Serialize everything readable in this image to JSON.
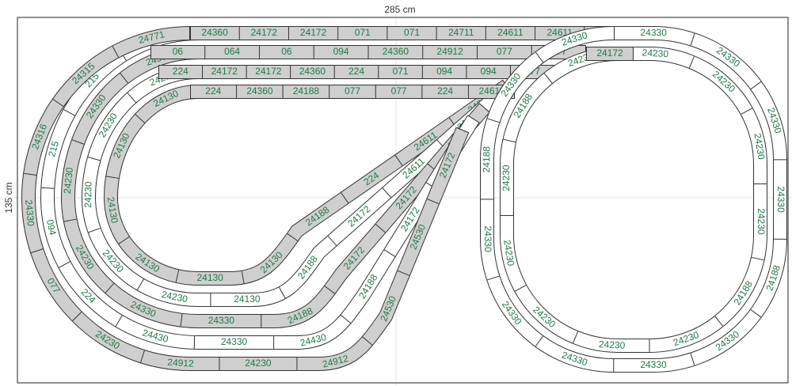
{
  "dimensions": {
    "width": "285 cm",
    "height": "135 cm"
  },
  "tracks": [
    {
      "labels": [
        "24130",
        "24130",
        "24130",
        "24130",
        "24130",
        "24130",
        "24188",
        "224",
        "24611",
        "24611"
      ]
    },
    {
      "labels": [
        "24230",
        "24230",
        "24230",
        "24230",
        "24230",
        "24130",
        "24188",
        "24172",
        "24611",
        "24611"
      ]
    },
    {
      "labels": [
        "24330",
        "24330",
        "24230",
        "24230",
        "24330",
        "24330",
        "24188",
        "24172",
        "24172",
        "24172"
      ]
    },
    {
      "labels": [
        "24315",
        "215",
        "215",
        "094",
        "224",
        "24430",
        "24330",
        "24430",
        "24188",
        "24172",
        "24172"
      ]
    },
    {
      "labels": [
        "24771",
        "24315",
        "24316",
        "24330",
        "077",
        "24230",
        "24912",
        "24230",
        "24912",
        "24530",
        "24530",
        "24172"
      ]
    },
    {
      "labels": [
        "24360",
        "24172",
        "24172",
        "071",
        "071",
        "24711",
        "24611",
        "24611",
        "24611"
      ]
    },
    {
      "labels": [
        "06",
        "064",
        "06",
        "094",
        "24360",
        "24912",
        "077",
        "077"
      ]
    },
    {
      "labels": [
        "224",
        "24172",
        "24172",
        "24360",
        "224",
        "071",
        "094",
        "094",
        "077"
      ]
    },
    {
      "labels": [
        "224",
        "24360",
        "24188",
        "077",
        "077",
        "224",
        "24611"
      ]
    },
    {
      "labels": [
        "24330",
        "24330",
        "24330",
        "24330",
        "24188",
        "24330",
        "24330",
        "24330",
        "24330",
        "24330",
        "24188",
        "24330",
        "24330"
      ]
    },
    {
      "labels": [
        "24230",
        "24230",
        "24230",
        "24230",
        "24188",
        "24230",
        "24230",
        "24230",
        "24230",
        "24230",
        "24188",
        "24230"
      ]
    },
    {
      "labels": [
        "24172"
      ]
    }
  ]
}
